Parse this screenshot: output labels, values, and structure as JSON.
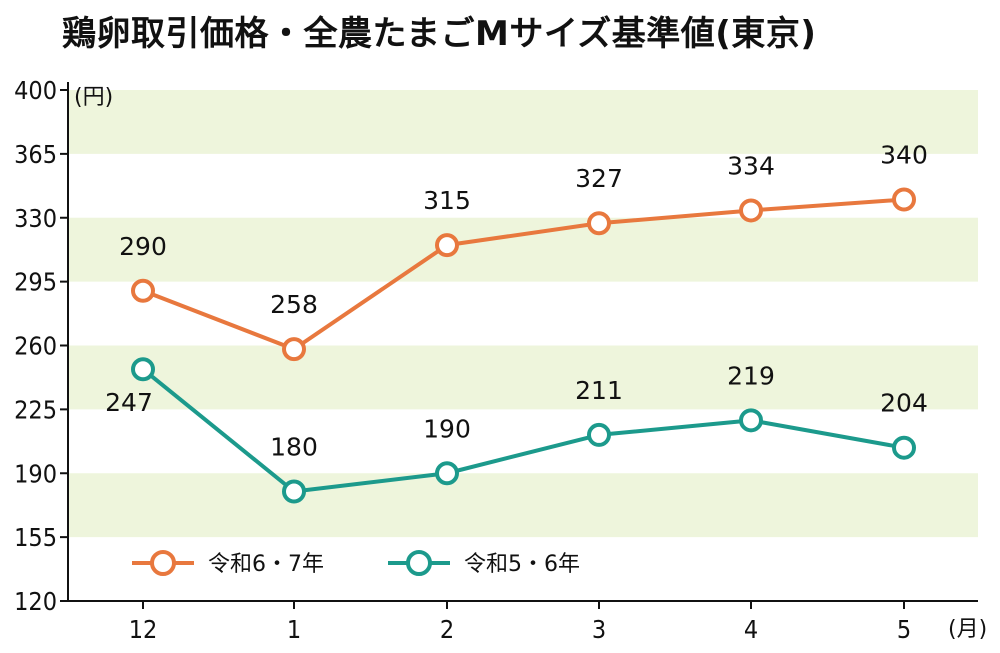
{
  "chart_data": {
    "type": "line",
    "title": "鶏卵取引価格・全農たまごMサイズ基準値(東京)",
    "yunit": "(円)",
    "xunit": "(月)",
    "categories": [
      "12",
      "1",
      "2",
      "3",
      "4",
      "5"
    ],
    "yticks": [
      "400",
      "365",
      "330",
      "295",
      "260",
      "225",
      "190",
      "155",
      "120"
    ],
    "ylim": [
      120,
      400
    ],
    "grid": "alternating horizontal bands",
    "legend_position": "bottom-left",
    "series": [
      {
        "name": "令和6・7年",
        "values": [
          290,
          258,
          315,
          327,
          334,
          340
        ],
        "labels": [
          "290",
          "258",
          "315",
          "327",
          "334",
          "340"
        ],
        "color": "#e8783e"
      },
      {
        "name": "令和5・6年",
        "values": [
          247,
          180,
          190,
          211,
          219,
          204
        ],
        "labels": [
          "247",
          "180",
          "190",
          "211",
          "219",
          "204"
        ],
        "color": "#1c9a8c"
      }
    ]
  }
}
